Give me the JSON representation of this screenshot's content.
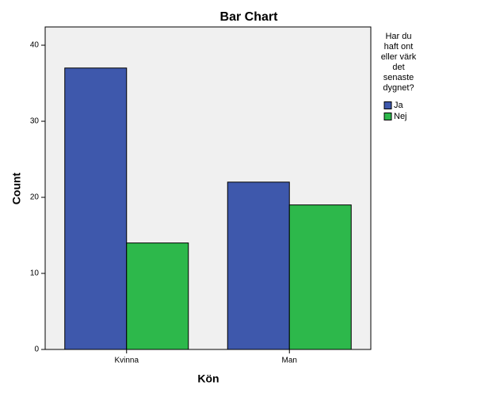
{
  "chart_data": {
    "type": "bar",
    "title": "Bar Chart",
    "x_label": "Kön",
    "y_label": "Count",
    "categories": [
      "Kvinna",
      "Man"
    ],
    "series": [
      {
        "name": "Ja",
        "color": "#3e58ac",
        "values": [
          37,
          22
        ]
      },
      {
        "name": "Nej",
        "color": "#2db84b",
        "values": [
          14,
          19
        ]
      }
    ],
    "legend_title": [
      "Har du",
      "haft ont",
      "eller värk",
      "det",
      "senaste",
      "dygnet?"
    ],
    "ylim": [
      0,
      42.4
    ],
    "yticks": [
      0,
      10,
      20,
      30,
      40
    ],
    "grid": false,
    "legend_position": "right"
  }
}
